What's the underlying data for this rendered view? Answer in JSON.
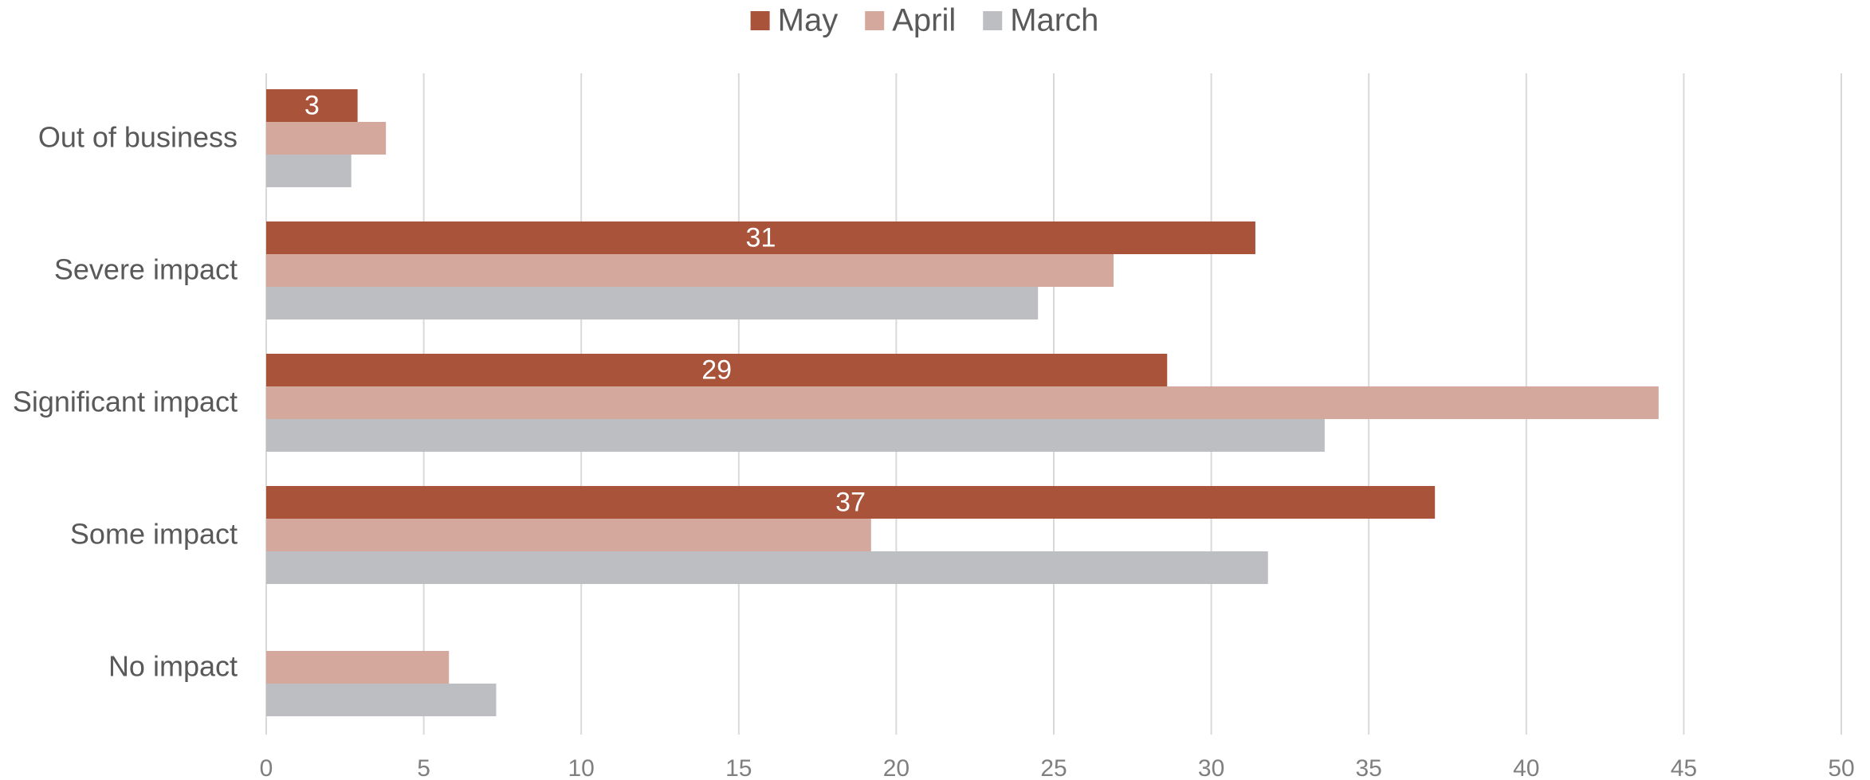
{
  "chart_data": {
    "type": "bar",
    "orientation": "horizontal",
    "categories": [
      "Out of business",
      "Severe impact",
      "Significant impact",
      "Some impact",
      "No impact"
    ],
    "series": [
      {
        "name": "May",
        "color": "#a9533a",
        "values": [
          2.9,
          31.4,
          28.6,
          37.1,
          0
        ],
        "labels": [
          "3",
          "31",
          "29",
          "37",
          ""
        ]
      },
      {
        "name": "April",
        "color": "#d4a89c",
        "values": [
          3.8,
          26.9,
          44.2,
          19.2,
          5.8
        ]
      },
      {
        "name": "March",
        "color": "#bdbec2",
        "values": [
          2.7,
          24.5,
          33.6,
          31.8,
          7.3
        ]
      }
    ],
    "legend_order": [
      "May",
      "April",
      "March"
    ],
    "xlim": [
      0,
      50
    ],
    "xticks": [
      0,
      5,
      10,
      15,
      20,
      25,
      30,
      35,
      40,
      45,
      50
    ],
    "grid": "vertical",
    "legend_position": "top-center",
    "title": "",
    "xlabel": "",
    "ylabel": ""
  }
}
